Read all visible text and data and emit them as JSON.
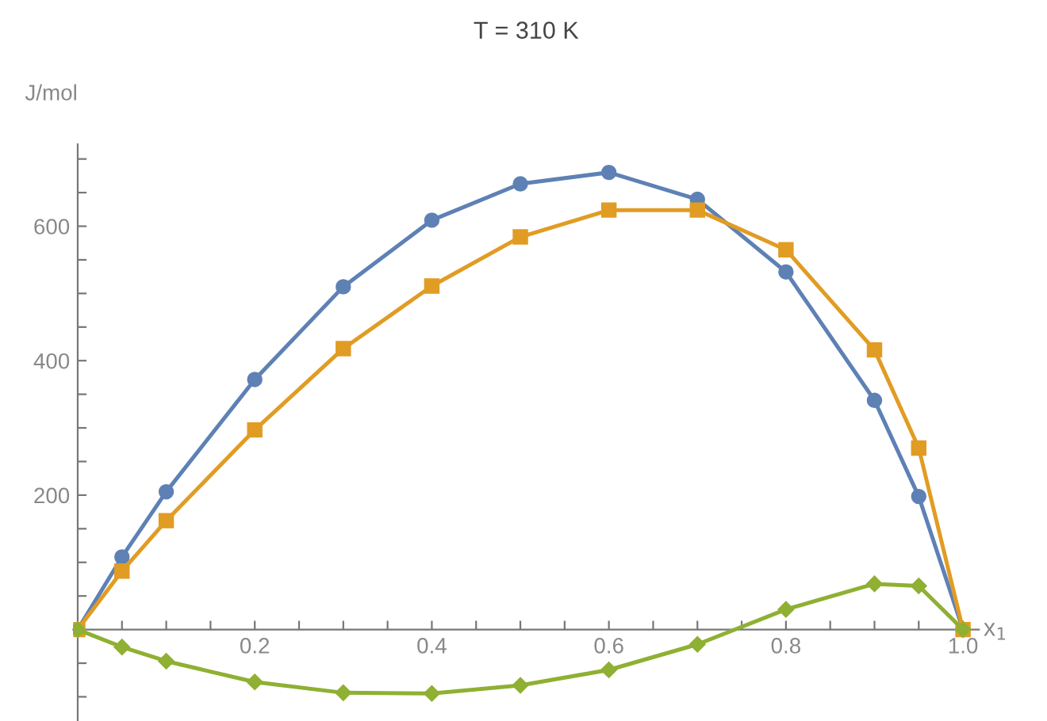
{
  "chart_data": {
    "type": "line",
    "title": "T = 310 K",
    "xlabel": "x$_{1}$",
    "ylabel": "J/mol",
    "x": [
      0,
      0.05,
      0.1,
      0.2,
      0.3,
      0.4,
      0.5,
      0.6,
      0.7,
      0.8,
      0.9,
      0.95,
      1.0
    ],
    "series": [
      {
        "color": "#5e81b5",
        "marker": "circle",
        "values": [
          0,
          108,
          205,
          372,
          510,
          609,
          663,
          680,
          640,
          532,
          341,
          198,
          0
        ]
      },
      {
        "color": "#e19c24",
        "marker": "square",
        "values": [
          0,
          87,
          162,
          297,
          418,
          511,
          584,
          624,
          624,
          565,
          416,
          270,
          0
        ]
      },
      {
        "color": "#8fb032",
        "marker": "diamond",
        "values": [
          0,
          -26,
          -47,
          -78,
          -94,
          -95,
          -83,
          -60,
          -22,
          30,
          68,
          65,
          0
        ]
      }
    ],
    "xlim": [
      -0.005,
      1.018
    ],
    "ylim": [
      -136,
      722
    ],
    "xticks": [
      {
        "value": 0.05,
        "label": null
      },
      {
        "value": 0.1,
        "label": null
      },
      {
        "value": 0.15,
        "label": null
      },
      {
        "value": 0.2,
        "label": "0.2"
      },
      {
        "value": 0.25,
        "label": null
      },
      {
        "value": 0.3,
        "label": null
      },
      {
        "value": 0.35,
        "label": null
      },
      {
        "value": 0.4,
        "label": "0.4"
      },
      {
        "value": 0.45,
        "label": null
      },
      {
        "value": 0.5,
        "label": null
      },
      {
        "value": 0.55,
        "label": null
      },
      {
        "value": 0.6,
        "label": "0.6"
      },
      {
        "value": 0.65,
        "label": null
      },
      {
        "value": 0.7,
        "label": null
      },
      {
        "value": 0.75,
        "label": null
      },
      {
        "value": 0.8,
        "label": "0.8"
      },
      {
        "value": 0.85,
        "label": null
      },
      {
        "value": 0.9,
        "label": null
      },
      {
        "value": 0.95,
        "label": null
      },
      {
        "value": 1.0,
        "label": "1.0"
      }
    ],
    "yticks": [
      {
        "value": -100,
        "label": null
      },
      {
        "value": -50,
        "label": null
      },
      {
        "value": 50,
        "label": null
      },
      {
        "value": 100,
        "label": null
      },
      {
        "value": 150,
        "label": null
      },
      {
        "value": 200,
        "label": "200"
      },
      {
        "value": 250,
        "label": null
      },
      {
        "value": 300,
        "label": null
      },
      {
        "value": 350,
        "label": null
      },
      {
        "value": 400,
        "label": "400"
      },
      {
        "value": 450,
        "label": null
      },
      {
        "value": 500,
        "label": null
      },
      {
        "value": 550,
        "label": null
      },
      {
        "value": 600,
        "label": "600"
      },
      {
        "value": 650,
        "label": null
      },
      {
        "value": 700,
        "label": null
      }
    ],
    "grid": false,
    "legend": false,
    "line_style": "solid"
  }
}
